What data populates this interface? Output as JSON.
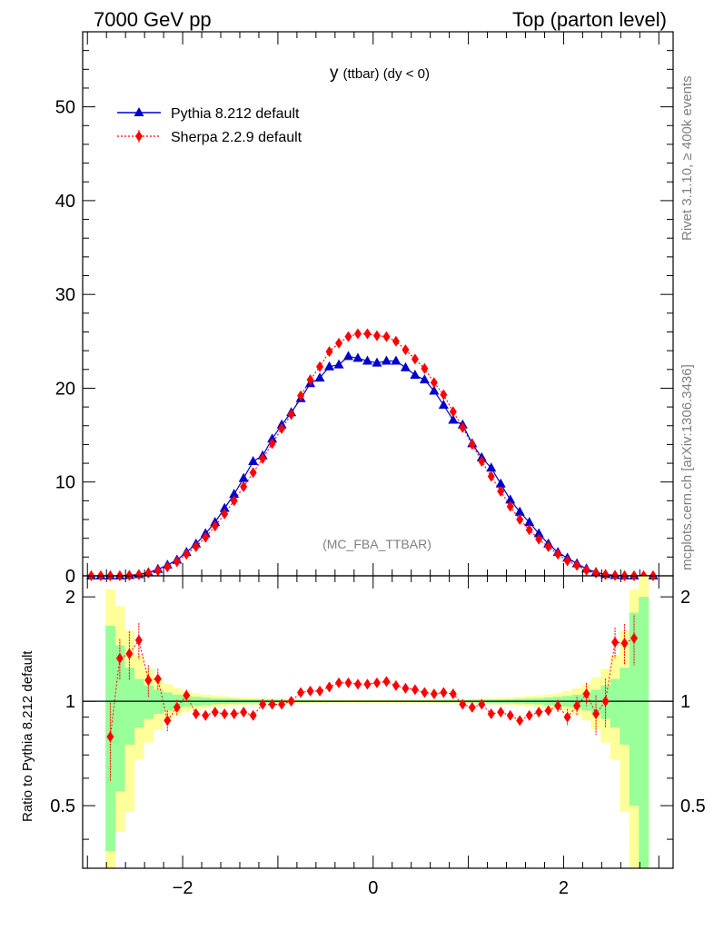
{
  "header": {
    "left": "7000 GeV pp",
    "right": "Top (parton level)"
  },
  "side": {
    "rivet": "Rivet 3.1.10, ≥ 400k events",
    "mcplots": "mcplots.cern.ch [arXiv:1306.3436]"
  },
  "chart_data": [
    {
      "type": "line",
      "title": "y (ttbar) (dy < 0)",
      "title_main": "y",
      "title_small": "(ttbar) (dy < 0)",
      "watermark": "(MC_FBA_TTBAR)",
      "xlabel": "",
      "ylabel": "",
      "xlim": [
        -3.05,
        3.15
      ],
      "ylim": [
        0,
        58
      ],
      "yticks": [
        0,
        10,
        20,
        30,
        40,
        50
      ],
      "ytick_labels": [
        "0",
        "10",
        "20",
        "30",
        "40",
        "50"
      ],
      "grid": false,
      "legend": "top-left",
      "x": [
        -2.96,
        -2.86,
        -2.76,
        -2.66,
        -2.56,
        -2.46,
        -2.36,
        -2.26,
        -2.16,
        -2.06,
        -1.96,
        -1.86,
        -1.76,
        -1.66,
        -1.56,
        -1.46,
        -1.36,
        -1.26,
        -1.16,
        -1.06,
        -0.96,
        -0.86,
        -0.76,
        -0.66,
        -0.56,
        -0.46,
        -0.36,
        -0.26,
        -0.16,
        -0.06,
        0.04,
        0.14,
        0.24,
        0.34,
        0.44,
        0.54,
        0.64,
        0.74,
        0.84,
        0.94,
        1.04,
        1.14,
        1.24,
        1.34,
        1.44,
        1.54,
        1.64,
        1.74,
        1.84,
        1.94,
        2.04,
        2.14,
        2.24,
        2.34,
        2.44,
        2.54,
        2.64,
        2.74,
        2.84,
        2.94
      ],
      "series": [
        {
          "name": "Pythia 8.212 default",
          "color": "#0000cc",
          "marker": "triangle",
          "values": [
            0.0,
            0.0,
            0.0,
            0.0,
            0.05,
            0.15,
            0.35,
            0.7,
            1.15,
            1.7,
            2.5,
            3.4,
            4.5,
            5.7,
            7.2,
            8.7,
            10.4,
            12.2,
            12.8,
            14.6,
            16.1,
            17.4,
            18.9,
            20.5,
            21.1,
            22.3,
            22.5,
            23.4,
            23.2,
            22.9,
            22.7,
            22.9,
            22.9,
            22.2,
            21.4,
            20.9,
            19.7,
            18.2,
            16.6,
            16.1,
            14.1,
            12.6,
            11.5,
            9.8,
            8.1,
            6.8,
            5.7,
            4.5,
            3.4,
            2.5,
            1.9,
            1.3,
            0.75,
            0.38,
            0.15,
            0.05,
            0.0,
            0.0,
            0.0,
            0.0
          ]
        },
        {
          "name": "Sherpa 2.2.9 default",
          "color": "#ff0000",
          "marker": "diamond",
          "values": [
            0.0,
            0.0,
            0.0,
            0.0,
            0.04,
            0.12,
            0.3,
            0.55,
            0.95,
            1.5,
            2.3,
            3.1,
            4.1,
            5.3,
            6.6,
            8.0,
            9.5,
            11.0,
            12.5,
            14.1,
            15.7,
            17.2,
            19.2,
            20.9,
            22.3,
            23.9,
            24.8,
            25.5,
            25.8,
            25.8,
            25.6,
            25.5,
            25.0,
            24.1,
            23.1,
            22.1,
            20.6,
            19.3,
            17.5,
            15.8,
            14.0,
            12.2,
            10.6,
            9.0,
            7.4,
            6.0,
            4.9,
            3.9,
            3.1,
            2.3,
            1.6,
            1.1,
            0.6,
            0.3,
            0.12,
            0.04,
            0.0,
            0.0,
            0.0,
            0.0
          ]
        }
      ]
    },
    {
      "type": "line",
      "title": "",
      "xlabel": "",
      "ylabel": "Ratio to Pythia 8.212 default",
      "xlim": [
        -3.05,
        3.15
      ],
      "ylim": [
        0.33,
        2.3
      ],
      "yticks": [
        0.5,
        1,
        2
      ],
      "ytick_labels": [
        "0.5",
        "1",
        "2"
      ],
      "xticks": [
        -2,
        0,
        2
      ],
      "xtick_labels": [
        "−2",
        "0",
        "2"
      ],
      "grid": false,
      "band_colors": {
        "inner": "#99ff99",
        "outer": "#ffff99"
      },
      "band_edges": [
        -2.81,
        -2.71,
        -2.61,
        -2.51,
        -2.41,
        -2.31,
        -2.21,
        -2.11,
        -2.01,
        -1.91,
        -1.81,
        -1.71,
        -1.61,
        -1.51,
        -1.41,
        -1.31,
        -1.21,
        -1.11,
        -1.01,
        -0.91,
        -0.81,
        -0.71,
        -0.61,
        -0.51,
        -0.41,
        -0.31,
        -0.21,
        -0.11,
        -0.01,
        0.09,
        0.19,
        0.29,
        0.39,
        0.49,
        0.59,
        0.69,
        0.79,
        0.89,
        0.99,
        1.09,
        1.19,
        1.29,
        1.39,
        1.49,
        1.59,
        1.69,
        1.79,
        1.89,
        1.99,
        2.09,
        2.19,
        2.29,
        2.39,
        2.49,
        2.59,
        2.69,
        2.79
      ],
      "band_inner_lo": [
        0.37,
        0.55,
        0.75,
        0.84,
        0.89,
        0.92,
        0.94,
        0.955,
        0.965,
        0.97,
        0.975,
        0.98,
        0.982,
        0.984,
        0.986,
        0.988,
        0.989,
        0.99,
        0.991,
        0.992,
        0.993,
        0.993,
        0.994,
        0.994,
        0.994,
        0.995,
        0.995,
        0.995,
        0.995,
        0.995,
        0.995,
        0.995,
        0.994,
        0.994,
        0.994,
        0.993,
        0.993,
        0.992,
        0.991,
        0.99,
        0.989,
        0.988,
        0.986,
        0.984,
        0.982,
        0.98,
        0.975,
        0.97,
        0.965,
        0.955,
        0.94,
        0.92,
        0.89,
        0.84,
        0.75,
        0.5,
        0.33
      ],
      "band_inner_hi": [
        1.65,
        1.45,
        1.25,
        1.16,
        1.11,
        1.08,
        1.06,
        1.045,
        1.035,
        1.03,
        1.025,
        1.02,
        1.018,
        1.016,
        1.014,
        1.012,
        1.011,
        1.01,
        1.009,
        1.008,
        1.007,
        1.007,
        1.006,
        1.006,
        1.006,
        1.005,
        1.005,
        1.005,
        1.005,
        1.005,
        1.005,
        1.005,
        1.006,
        1.006,
        1.006,
        1.007,
        1.007,
        1.008,
        1.009,
        1.01,
        1.011,
        1.012,
        1.014,
        1.016,
        1.018,
        1.02,
        1.025,
        1.03,
        1.035,
        1.045,
        1.06,
        1.08,
        1.11,
        1.16,
        1.25,
        1.8,
        2.0
      ],
      "band_outer_lo": [
        0.33,
        0.42,
        0.48,
        0.68,
        0.76,
        0.83,
        0.88,
        0.91,
        0.93,
        0.945,
        0.955,
        0.96,
        0.965,
        0.97,
        0.975,
        0.978,
        0.98,
        0.982,
        0.984,
        0.986,
        0.987,
        0.988,
        0.989,
        0.99,
        0.99,
        0.99,
        0.99,
        0.99,
        0.99,
        0.99,
        0.99,
        0.99,
        0.99,
        0.99,
        0.989,
        0.988,
        0.987,
        0.986,
        0.984,
        0.982,
        0.98,
        0.978,
        0.975,
        0.97,
        0.965,
        0.96,
        0.955,
        0.945,
        0.93,
        0.91,
        0.88,
        0.83,
        0.76,
        0.68,
        0.48,
        0.33,
        0.33
      ],
      "band_outer_hi": [
        2.1,
        1.88,
        1.6,
        1.36,
        1.24,
        1.17,
        1.12,
        1.09,
        1.07,
        1.055,
        1.045,
        1.04,
        1.035,
        1.03,
        1.025,
        1.022,
        1.02,
        1.018,
        1.016,
        1.014,
        1.013,
        1.012,
        1.011,
        1.01,
        1.01,
        1.01,
        1.01,
        1.01,
        1.01,
        1.01,
        1.01,
        1.01,
        1.01,
        1.01,
        1.011,
        1.012,
        1.013,
        1.014,
        1.016,
        1.018,
        1.02,
        1.022,
        1.025,
        1.03,
        1.035,
        1.04,
        1.045,
        1.055,
        1.07,
        1.09,
        1.12,
        1.17,
        1.24,
        1.36,
        1.6,
        2.1,
        2.3
      ],
      "ratio_x": [
        -2.76,
        -2.66,
        -2.56,
        -2.46,
        -2.36,
        -2.26,
        -2.16,
        -2.06,
        -1.96,
        -1.86,
        -1.76,
        -1.66,
        -1.56,
        -1.46,
        -1.36,
        -1.26,
        -1.16,
        -1.06,
        -0.96,
        -0.86,
        -0.76,
        -0.66,
        -0.56,
        -0.46,
        -0.36,
        -0.26,
        -0.16,
        -0.06,
        0.04,
        0.14,
        0.24,
        0.34,
        0.44,
        0.54,
        0.64,
        0.74,
        0.84,
        0.94,
        1.04,
        1.14,
        1.24,
        1.34,
        1.44,
        1.54,
        1.64,
        1.74,
        1.84,
        1.94,
        2.04,
        2.14,
        2.24,
        2.34,
        2.44,
        2.54,
        2.64,
        2.74
      ],
      "ratio_values": [
        0.79,
        1.33,
        1.37,
        1.5,
        1.15,
        1.16,
        0.88,
        0.96,
        1.04,
        0.92,
        0.91,
        0.93,
        0.92,
        0.92,
        0.93,
        0.91,
        0.98,
        0.98,
        0.98,
        1.0,
        1.06,
        1.07,
        1.07,
        1.1,
        1.13,
        1.13,
        1.12,
        1.12,
        1.13,
        1.14,
        1.11,
        1.09,
        1.08,
        1.06,
        1.05,
        1.06,
        1.05,
        0.98,
        0.96,
        0.98,
        0.92,
        0.93,
        0.91,
        0.88,
        0.91,
        0.93,
        0.94,
        0.97,
        0.9,
        0.97,
        1.05,
        0.92,
        1.0,
        1.48,
        1.47,
        1.52
      ],
      "ratio_err": [
        0.2,
        0.18,
        0.22,
        0.18,
        0.12,
        0.08,
        0.06,
        0.05,
        0.04,
        0.03,
        0.02,
        0.02,
        0.02,
        0.02,
        0.02,
        0.02,
        0.02,
        0.02,
        0.02,
        0.02,
        0.02,
        0.02,
        0.02,
        0.02,
        0.02,
        0.02,
        0.02,
        0.02,
        0.02,
        0.02,
        0.02,
        0.02,
        0.02,
        0.02,
        0.02,
        0.02,
        0.02,
        0.02,
        0.02,
        0.02,
        0.02,
        0.02,
        0.02,
        0.02,
        0.02,
        0.02,
        0.03,
        0.04,
        0.05,
        0.06,
        0.08,
        0.12,
        0.16,
        0.15,
        0.2,
        0.25
      ]
    }
  ]
}
